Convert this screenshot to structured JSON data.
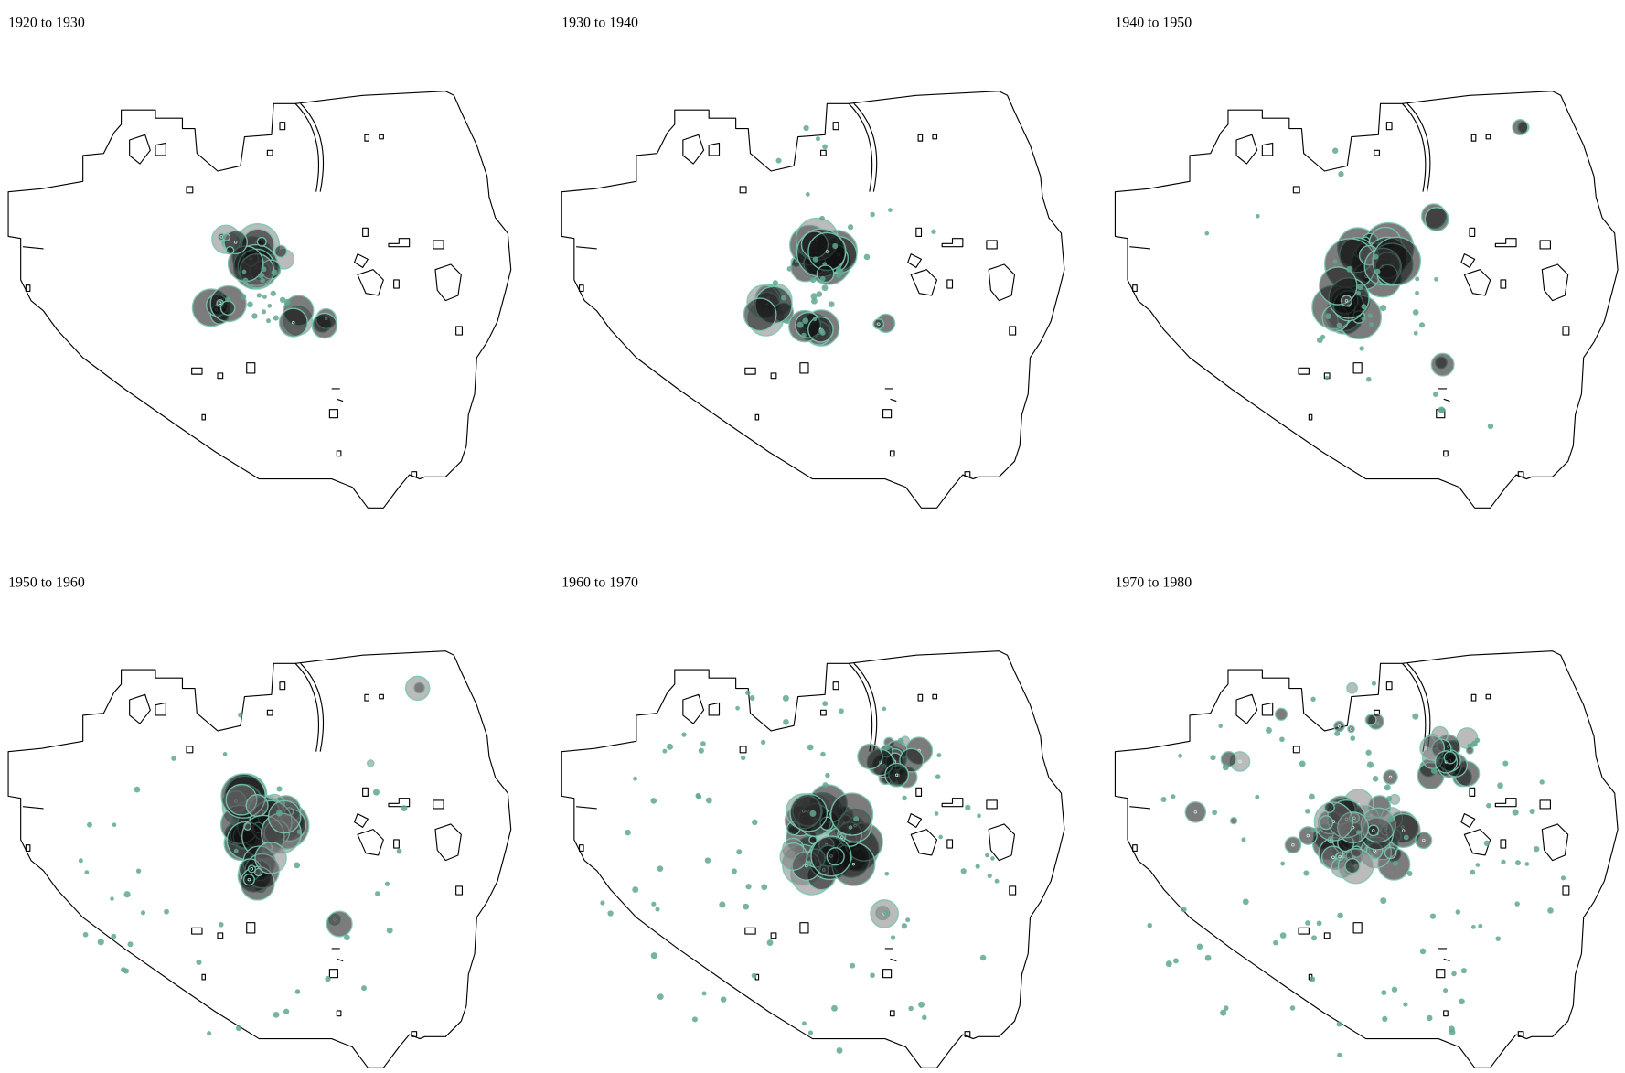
{
  "panels": [
    {
      "title": "1920 to 1930"
    },
    {
      "title": "1930 to 1940"
    },
    {
      "title": "1940 to 1950"
    },
    {
      "title": "1950 to 1960"
    },
    {
      "title": "1960 to 1970"
    },
    {
      "title": "1970 to 1980"
    }
  ]
}
